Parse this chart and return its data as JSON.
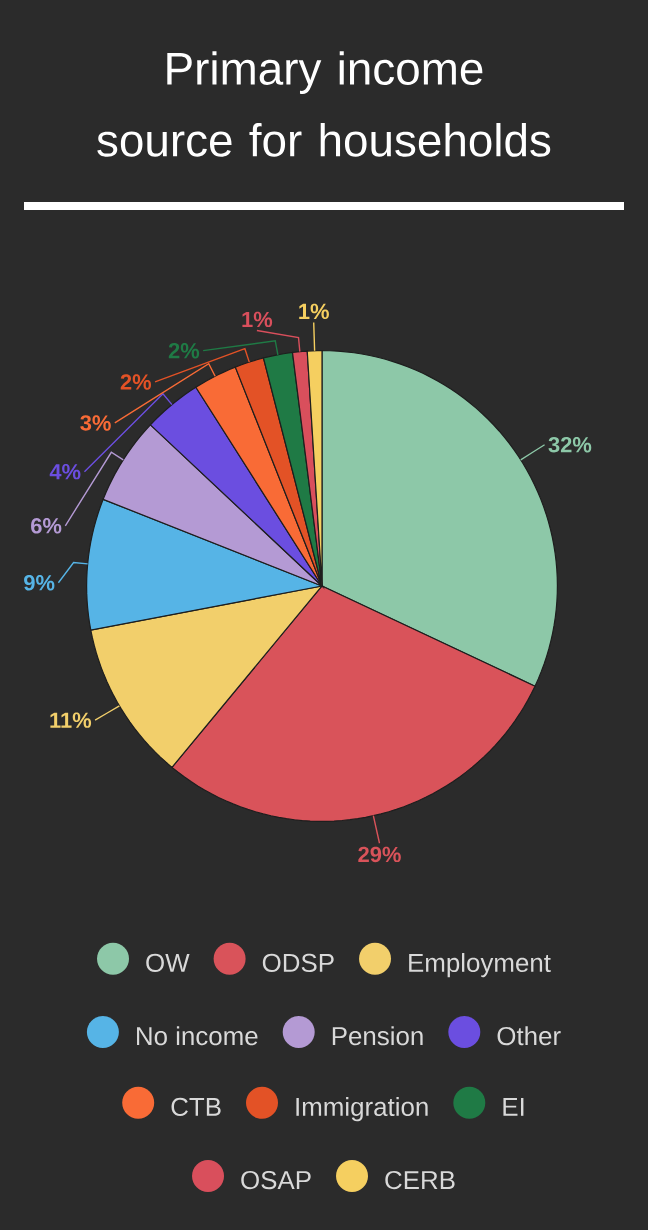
{
  "chart_data": {
    "type": "pie",
    "title": "Primary income source for households",
    "categories": [
      "OW",
      "ODSP",
      "Employment",
      "No income",
      "Pension",
      "Other",
      "CTB",
      "Immigration",
      "EI",
      "OSAP",
      "CERB"
    ],
    "values": [
      32,
      29,
      11,
      9,
      6,
      4,
      3,
      2,
      2,
      1,
      1
    ],
    "value_labels": [
      "32%",
      "29%",
      "11%",
      "9%",
      "6%",
      "4%",
      "3%",
      "2%",
      "2%",
      "1%",
      "1%"
    ],
    "colors": [
      "#8dc8a8",
      "#d9535a",
      "#f2cf6b",
      "#56b4e6",
      "#b49ad4",
      "#6b4ee0",
      "#f96b36",
      "#e35226",
      "#1f7a45",
      "#d94f5c",
      "#f5cf60"
    ],
    "legend": "bottom"
  }
}
